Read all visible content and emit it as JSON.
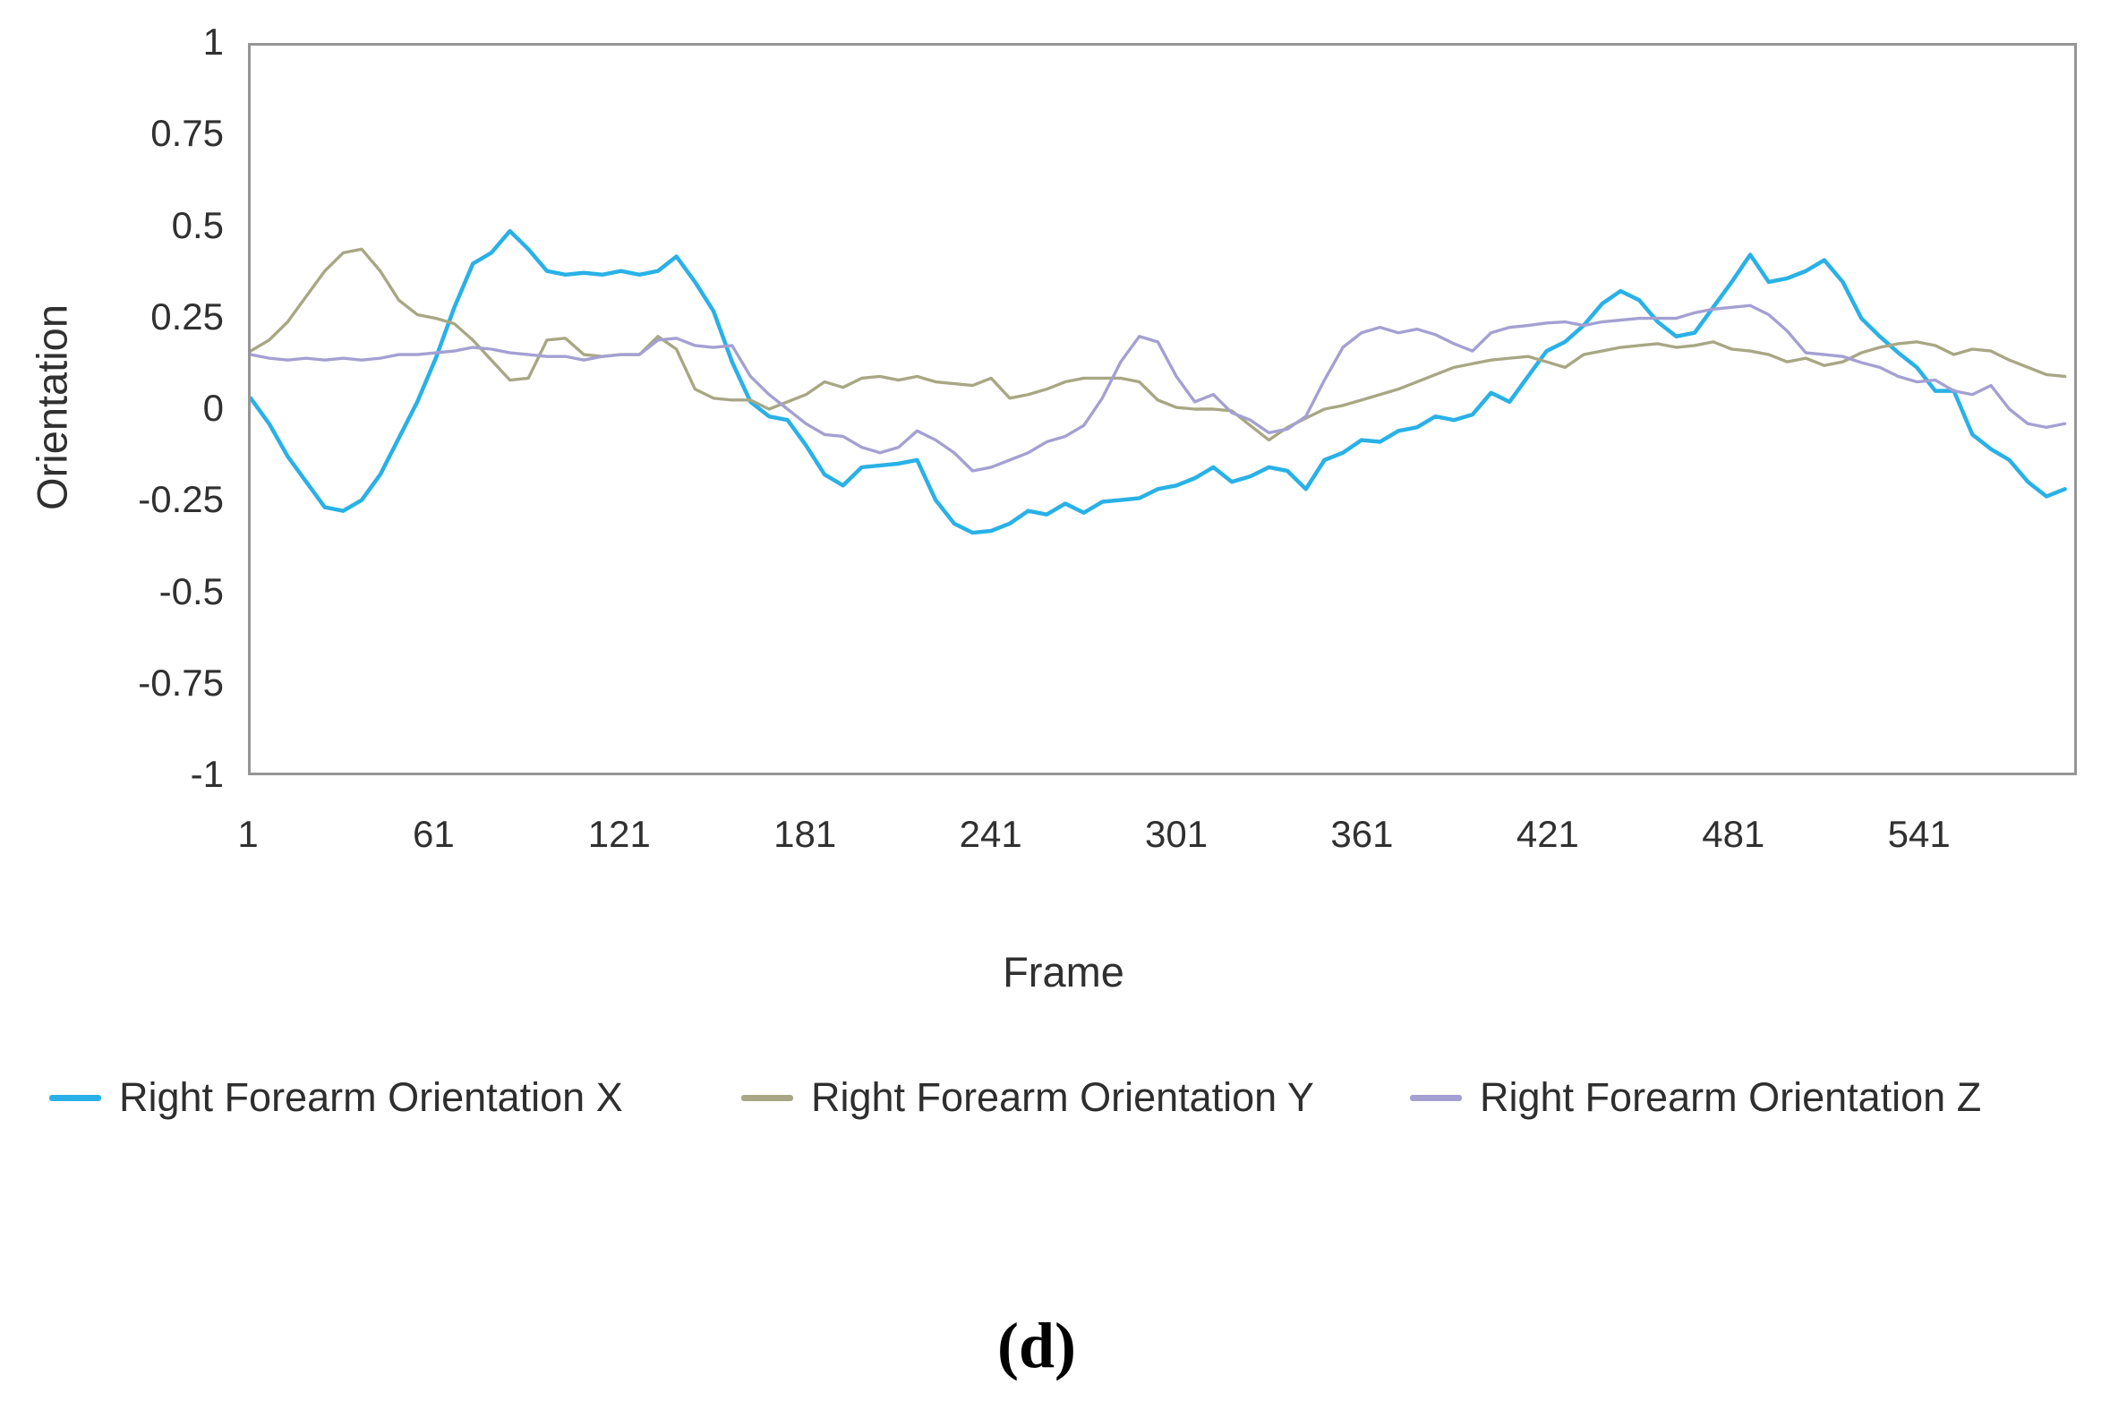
{
  "figure": {
    "y_axis_title": "Orientation",
    "x_axis_title": "Frame",
    "caption": "(d)"
  },
  "legend": [
    {
      "label": "Right Forearm Orientation X",
      "color": "#29b1e7"
    },
    {
      "label": "Right Forearm Orientation Y",
      "color": "#a8a785"
    },
    {
      "label": "Right Forearm Orientation Z",
      "color": "#a4a0d2"
    }
  ],
  "chart_data": {
    "type": "line",
    "title": "",
    "xlabel": "Frame",
    "ylabel": "Orientation",
    "xlim": [
      1,
      592
    ],
    "ylim": [
      -1,
      1
    ],
    "x_ticks": [
      1,
      61,
      121,
      181,
      241,
      301,
      361,
      421,
      481,
      541
    ],
    "y_ticks": [
      1,
      0.75,
      0.5,
      0.25,
      0,
      -0.25,
      -0.5,
      -0.75,
      -1
    ],
    "grid": false,
    "legend_position": "bottom",
    "x": [
      1,
      7,
      13,
      19,
      25,
      31,
      37,
      43,
      49,
      55,
      61,
      67,
      73,
      79,
      85,
      91,
      97,
      103,
      109,
      115,
      121,
      127,
      133,
      139,
      145,
      151,
      157,
      163,
      169,
      175,
      181,
      187,
      193,
      199,
      205,
      211,
      217,
      223,
      229,
      235,
      241,
      247,
      253,
      259,
      265,
      271,
      277,
      283,
      289,
      295,
      301,
      307,
      313,
      319,
      325,
      331,
      337,
      343,
      349,
      355,
      361,
      367,
      373,
      379,
      385,
      391,
      397,
      403,
      409,
      415,
      421,
      427,
      433,
      439,
      445,
      451,
      457,
      463,
      469,
      475,
      481,
      487,
      493,
      499,
      505,
      511,
      517,
      523,
      529,
      535,
      541,
      547,
      553,
      559,
      565,
      571,
      577,
      583,
      589
    ],
    "series": [
      {
        "name": "Right Forearm Orientation X",
        "color": "#29b1e7",
        "stroke_width": 4.5,
        "values": [
          0.03,
          -0.04,
          -0.13,
          -0.2,
          -0.27,
          -0.28,
          -0.25,
          -0.18,
          -0.08,
          0.02,
          0.14,
          0.28,
          0.4,
          0.43,
          0.49,
          0.44,
          0.38,
          0.37,
          0.375,
          0.37,
          0.38,
          0.37,
          0.38,
          0.42,
          0.35,
          0.27,
          0.13,
          0.02,
          -0.02,
          -0.03,
          -0.1,
          -0.18,
          -0.21,
          -0.16,
          -0.155,
          -0.15,
          -0.14,
          -0.25,
          -0.315,
          -0.34,
          -0.335,
          -0.315,
          -0.28,
          -0.29,
          -0.26,
          -0.285,
          -0.255,
          -0.25,
          -0.245,
          -0.22,
          -0.21,
          -0.19,
          -0.16,
          -0.2,
          -0.185,
          -0.16,
          -0.17,
          -0.22,
          -0.14,
          -0.12,
          -0.085,
          -0.09,
          -0.06,
          -0.05,
          -0.02,
          -0.03,
          -0.015,
          0.045,
          0.02,
          0.09,
          0.16,
          0.185,
          0.23,
          0.29,
          0.325,
          0.3,
          0.24,
          0.2,
          0.21,
          0.28,
          0.35,
          0.425,
          0.35,
          0.36,
          0.38,
          0.41,
          0.35,
          0.25,
          0.2,
          0.155,
          0.115,
          0.05,
          0.05,
          -0.07,
          -0.11,
          -0.14,
          -0.2,
          -0.24,
          -0.22
        ]
      },
      {
        "name": "Right Forearm Orientation Y",
        "color": "#a8a785",
        "stroke_width": 3.4,
        "values": [
          0.16,
          0.19,
          0.24,
          0.31,
          0.38,
          0.43,
          0.44,
          0.38,
          0.3,
          0.26,
          0.25,
          0.235,
          0.19,
          0.135,
          0.08,
          0.085,
          0.19,
          0.195,
          0.15,
          0.145,
          0.15,
          0.15,
          0.2,
          0.165,
          0.055,
          0.03,
          0.025,
          0.025,
          0.0,
          0.02,
          0.04,
          0.075,
          0.06,
          0.085,
          0.09,
          0.08,
          0.09,
          0.075,
          0.07,
          0.065,
          0.085,
          0.03,
          0.04,
          0.055,
          0.075,
          0.085,
          0.085,
          0.085,
          0.075,
          0.025,
          0.005,
          0.0,
          0.0,
          -0.005,
          -0.045,
          -0.085,
          -0.05,
          -0.025,
          0.0,
          0.01,
          0.025,
          0.04,
          0.055,
          0.075,
          0.095,
          0.115,
          0.125,
          0.135,
          0.14,
          0.145,
          0.13,
          0.115,
          0.15,
          0.16,
          0.17,
          0.175,
          0.18,
          0.17,
          0.175,
          0.185,
          0.165,
          0.16,
          0.15,
          0.13,
          0.14,
          0.12,
          0.13,
          0.155,
          0.17,
          0.18,
          0.185,
          0.175,
          0.15,
          0.165,
          0.16,
          0.135,
          0.115,
          0.095,
          0.09
        ]
      },
      {
        "name": "Right Forearm Orientation Z",
        "color": "#a4a0d2",
        "stroke_width": 3.4,
        "values": [
          0.15,
          0.14,
          0.135,
          0.14,
          0.135,
          0.14,
          0.135,
          0.14,
          0.15,
          0.15,
          0.155,
          0.16,
          0.17,
          0.165,
          0.155,
          0.15,
          0.145,
          0.145,
          0.135,
          0.145,
          0.15,
          0.15,
          0.19,
          0.195,
          0.175,
          0.17,
          0.175,
          0.09,
          0.04,
          0.0,
          -0.04,
          -0.07,
          -0.075,
          -0.105,
          -0.12,
          -0.105,
          -0.06,
          -0.085,
          -0.12,
          -0.17,
          -0.16,
          -0.14,
          -0.12,
          -0.09,
          -0.075,
          -0.045,
          0.03,
          0.13,
          0.2,
          0.185,
          0.09,
          0.02,
          0.04,
          -0.01,
          -0.03,
          -0.065,
          -0.055,
          -0.02,
          0.08,
          0.17,
          0.21,
          0.225,
          0.21,
          0.22,
          0.205,
          0.18,
          0.16,
          0.21,
          0.225,
          0.23,
          0.237,
          0.24,
          0.23,
          0.24,
          0.245,
          0.25,
          0.25,
          0.25,
          0.265,
          0.275,
          0.28,
          0.285,
          0.26,
          0.215,
          0.155,
          0.15,
          0.145,
          0.128,
          0.115,
          0.09,
          0.075,
          0.08,
          0.05,
          0.04,
          0.065,
          0.0,
          -0.04,
          -0.05,
          -0.04
        ]
      }
    ]
  }
}
